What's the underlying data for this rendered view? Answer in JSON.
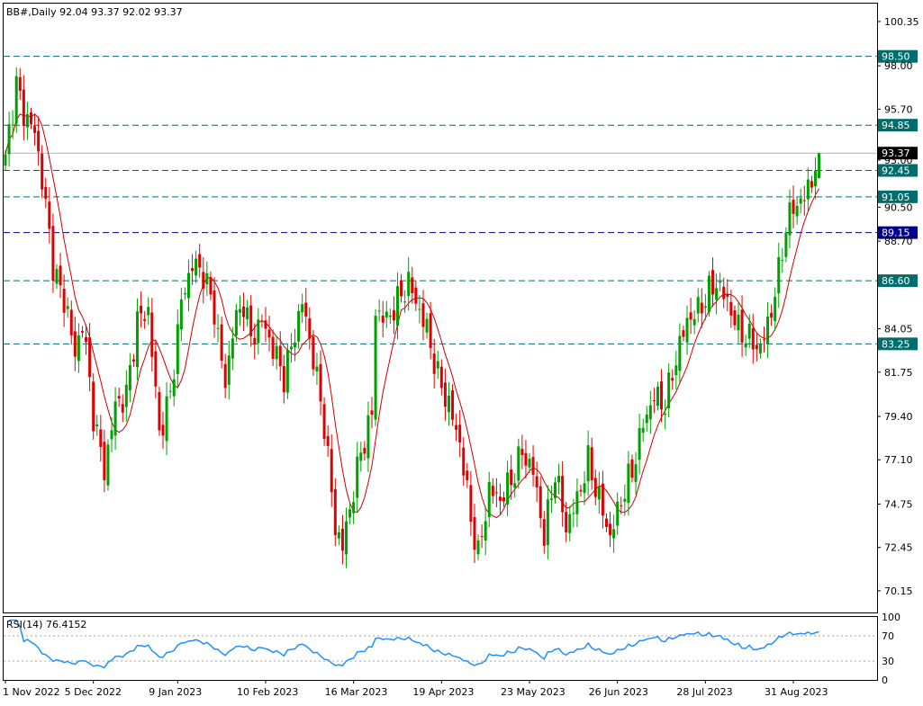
{
  "chart_data": {
    "type": "candlestick",
    "title": "BB#,Daily  92.04 93.37 92.02 93.37",
    "symbol": "BB#",
    "timeframe": "Daily",
    "last_bar": {
      "open": 92.04,
      "high": 93.37,
      "low": 92.02,
      "close": 93.37
    },
    "ylim": [
      69.0,
      101.3
    ],
    "y_ticks": [
      "100.35",
      "98.00",
      "95.70",
      "93.00",
      "90.50",
      "88.70",
      "84.05",
      "81.75",
      "79.40",
      "77.10",
      "74.75",
      "72.45",
      "70.15"
    ],
    "x_ticks": [
      {
        "label": "1 Nov 2022",
        "index": 0
      },
      {
        "label": "5 Dec 2022",
        "index": 24
      },
      {
        "label": "9 Jan 2023",
        "index": 47
      },
      {
        "label": "10 Feb 2023",
        "index": 71
      },
      {
        "label": "16 Mar 2023",
        "index": 95
      },
      {
        "label": "19 Apr 2023",
        "index": 119
      },
      {
        "label": "23 May 2023",
        "index": 143
      },
      {
        "label": "26 Jun 2023",
        "index": 167
      },
      {
        "label": "28 Jul 2023",
        "index": 191
      },
      {
        "label": "31 Aug 2023",
        "index": 215
      }
    ],
    "horizontal_levels": [
      {
        "value": 98.5,
        "label": "98.50",
        "color": "#006d6d",
        "style": "dashed"
      },
      {
        "value": 94.85,
        "label": "94.85",
        "color": "#006d6d",
        "style": "dashed"
      },
      {
        "value": 92.45,
        "label": "92.45",
        "color": "#006d6d",
        "style": "dashed"
      },
      {
        "value": 91.05,
        "label": "91.05",
        "color": "#006d6d",
        "style": "dashed"
      },
      {
        "value": 89.15,
        "label": "89.15",
        "color": "#00008b",
        "style": "dashed"
      },
      {
        "value": 86.6,
        "label": "86.60",
        "color": "#006d6d",
        "style": "dashed"
      },
      {
        "value": 83.25,
        "label": "83.25",
        "color": "#006d6d",
        "style": "dashed"
      }
    ],
    "current_price": {
      "value": 93.37,
      "label": "93.37"
    },
    "colors": {
      "bull": "#00a000",
      "bear": "#e00000",
      "ma": "#cc0000",
      "rsi": "#1e90ff",
      "grid_dash": "#006d6d"
    },
    "moving_average": {
      "type": "MA",
      "color": "#cc0000"
    },
    "anchors": [
      {
        "i": 0,
        "c": 93.3
      },
      {
        "i": 3,
        "c": 97.0
      },
      {
        "i": 5,
        "c": 95.5
      },
      {
        "i": 8,
        "c": 94.5
      },
      {
        "i": 10,
        "c": 92.0
      },
      {
        "i": 13,
        "c": 87.5
      },
      {
        "i": 15,
        "c": 86.0
      },
      {
        "i": 17,
        "c": 85.0
      },
      {
        "i": 19,
        "c": 82.5
      },
      {
        "i": 21,
        "c": 84.5
      },
      {
        "i": 24,
        "c": 79.5
      },
      {
        "i": 27,
        "c": 76.5
      },
      {
        "i": 30,
        "c": 80.0
      },
      {
        "i": 33,
        "c": 80.5
      },
      {
        "i": 36,
        "c": 84.5
      },
      {
        "i": 39,
        "c": 85.0
      },
      {
        "i": 42,
        "c": 78.5
      },
      {
        "i": 45,
        "c": 80.5
      },
      {
        "i": 48,
        "c": 85.5
      },
      {
        "i": 51,
        "c": 87.5
      },
      {
        "i": 54,
        "c": 87.0
      },
      {
        "i": 57,
        "c": 85.0
      },
      {
        "i": 60,
        "c": 81.0
      },
      {
        "i": 62,
        "c": 84.0
      },
      {
        "i": 65,
        "c": 85.5
      },
      {
        "i": 67,
        "c": 83.5
      },
      {
        "i": 70,
        "c": 84.5
      },
      {
        "i": 73,
        "c": 83.0
      },
      {
        "i": 76,
        "c": 81.5
      },
      {
        "i": 78,
        "c": 83.0
      },
      {
        "i": 81,
        "c": 85.5
      },
      {
        "i": 84,
        "c": 82.5
      },
      {
        "i": 87,
        "c": 79.0
      },
      {
        "i": 90,
        "c": 73.5
      },
      {
        "i": 92,
        "c": 72.5
      },
      {
        "i": 94,
        "c": 74.5
      },
      {
        "i": 97,
        "c": 77.5
      },
      {
        "i": 100,
        "c": 79.5
      },
      {
        "i": 101,
        "c": 85.0
      },
      {
        "i": 104,
        "c": 84.5
      },
      {
        "i": 107,
        "c": 85.5
      },
      {
        "i": 110,
        "c": 86.5
      },
      {
        "i": 112,
        "c": 85.5
      },
      {
        "i": 115,
        "c": 84.0
      },
      {
        "i": 118,
        "c": 81.5
      },
      {
        "i": 121,
        "c": 80.0
      },
      {
        "i": 124,
        "c": 78.0
      },
      {
        "i": 127,
        "c": 74.0
      },
      {
        "i": 129,
        "c": 72.0
      },
      {
        "i": 132,
        "c": 75.5
      },
      {
        "i": 135,
        "c": 75.0
      },
      {
        "i": 138,
        "c": 76.0
      },
      {
        "i": 141,
        "c": 77.5
      },
      {
        "i": 144,
        "c": 76.5
      },
      {
        "i": 147,
        "c": 73.0
      },
      {
        "i": 150,
        "c": 76.5
      },
      {
        "i": 153,
        "c": 73.5
      },
      {
        "i": 156,
        "c": 75.0
      },
      {
        "i": 159,
        "c": 77.0
      },
      {
        "i": 162,
        "c": 75.0
      },
      {
        "i": 165,
        "c": 73.0
      },
      {
        "i": 168,
        "c": 75.0
      },
      {
        "i": 171,
        "c": 76.5
      },
      {
        "i": 174,
        "c": 79.0
      },
      {
        "i": 177,
        "c": 80.5
      },
      {
        "i": 180,
        "c": 80.0
      },
      {
        "i": 183,
        "c": 82.5
      },
      {
        "i": 186,
        "c": 84.5
      },
      {
        "i": 189,
        "c": 85.0
      },
      {
        "i": 192,
        "c": 86.0
      },
      {
        "i": 194,
        "c": 86.5
      },
      {
        "i": 197,
        "c": 85.5
      },
      {
        "i": 200,
        "c": 84.0
      },
      {
        "i": 203,
        "c": 83.5
      },
      {
        "i": 206,
        "c": 83.0
      },
      {
        "i": 209,
        "c": 85.0
      },
      {
        "i": 211,
        "c": 87.0
      },
      {
        "i": 213,
        "c": 89.5
      },
      {
        "i": 215,
        "c": 90.5
      },
      {
        "i": 218,
        "c": 91.0
      },
      {
        "i": 220,
        "c": 92.0
      },
      {
        "i": 222,
        "c": 93.37
      }
    ],
    "rsi": {
      "label": "RSI(14) 76.4152",
      "period": 14,
      "value": 76.4152,
      "ylim": [
        0,
        100
      ],
      "ticks": [
        "100",
        "70",
        "30",
        "0"
      ],
      "levels": [
        70,
        30
      ]
    }
  }
}
